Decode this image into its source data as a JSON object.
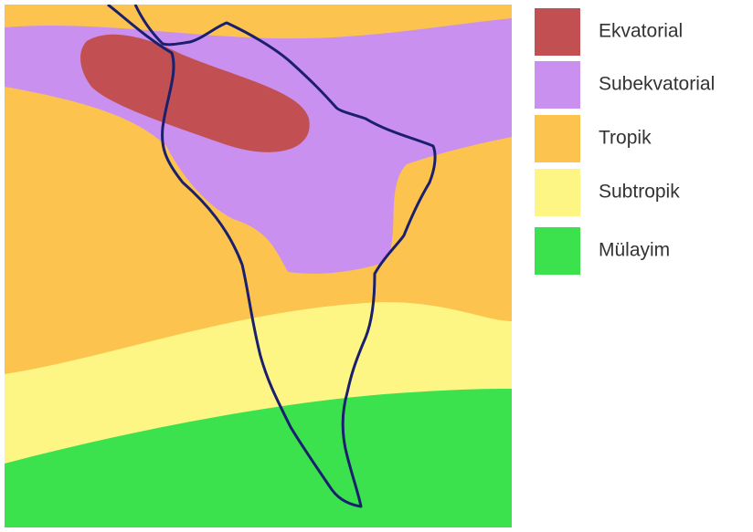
{
  "legend": [
    {
      "label": "Ekvatorial",
      "color": "#c24f51"
    },
    {
      "label": "Subekvatorial",
      "color": "#c990ef"
    },
    {
      "label": "Tropik",
      "color": "#fcc44f"
    },
    {
      "label": "Subtropik",
      "color": "#fdf685"
    },
    {
      "label": "Mülayim",
      "color": "#3ce24e"
    }
  ]
}
